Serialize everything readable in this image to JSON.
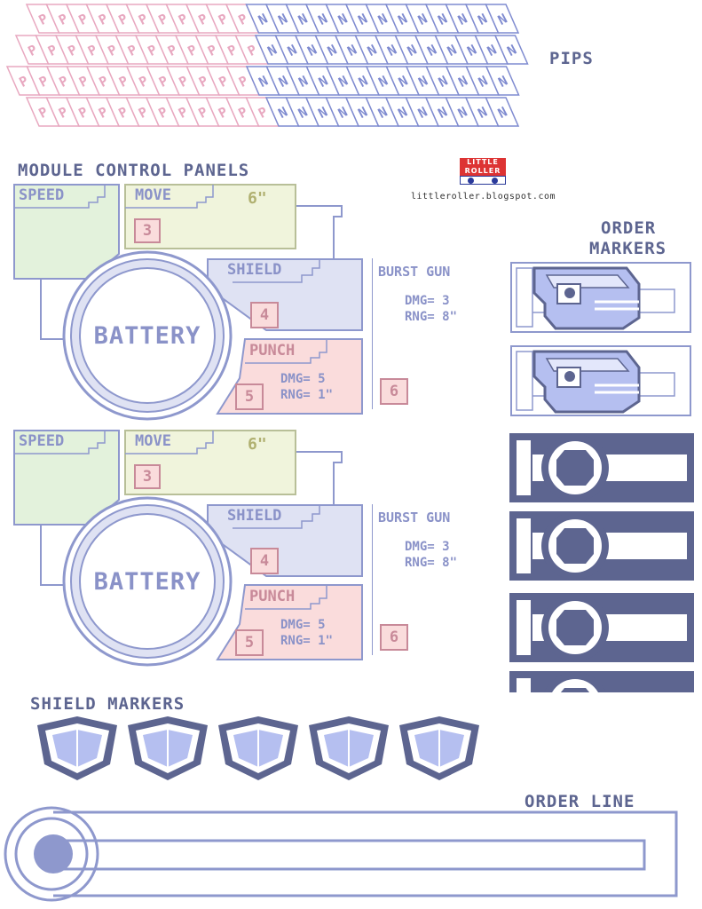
{
  "pips": {
    "label": "PIPS",
    "p_glyph": "P",
    "n_glyph": "N"
  },
  "logo": {
    "line1": "LITTLE",
    "line2": "ROLLER",
    "url": "littleroller.blogspot.com"
  },
  "module_panels": {
    "heading": "MODULE CONTROL PANELS",
    "panels": [
      {
        "speed": "SPEED",
        "move": "MOVE",
        "move_value": "6\"",
        "move_cost": "3",
        "shield": "SHIELD",
        "shield_cost": "4",
        "battery": "BATTERY",
        "punch": "PUNCH",
        "punch_dmg": "DMG= 5",
        "punch_rng": "RNG= 1\"",
        "punch_cost": "5",
        "burst": "BURST GUN",
        "burst_dmg": "DMG= 3",
        "burst_rng": "RNG= 8\"",
        "burst_cost": "6"
      },
      {
        "speed": "SPEED",
        "move": "MOVE",
        "move_value": "6\"",
        "move_cost": "3",
        "shield": "SHIELD",
        "shield_cost": "4",
        "battery": "BATTERY",
        "punch": "PUNCH",
        "punch_dmg": "DMG= 5",
        "punch_rng": "RNG= 1\"",
        "punch_cost": "5",
        "burst": "BURST GUN",
        "burst_dmg": "DMG= 3",
        "burst_rng": "RNG= 8\"",
        "burst_cost": "6"
      }
    ]
  },
  "order_markers": {
    "heading_line1": "ORDER",
    "heading_line2": "MARKERS"
  },
  "shield_markers": {
    "heading": "SHIELD MARKERS"
  },
  "order_line": {
    "heading": "ORDER LINE"
  },
  "colors": {
    "pink": "#e8a8c0",
    "blue": "#7f8bd0",
    "dark_blue": "#5d6590",
    "green_fill": "#e3f2dc",
    "yellow_fill": "#f0f4dc",
    "lavender_fill": "#dfe2f3",
    "pink_fill": "#fadcdc",
    "panel_border": "#8e98cd"
  }
}
